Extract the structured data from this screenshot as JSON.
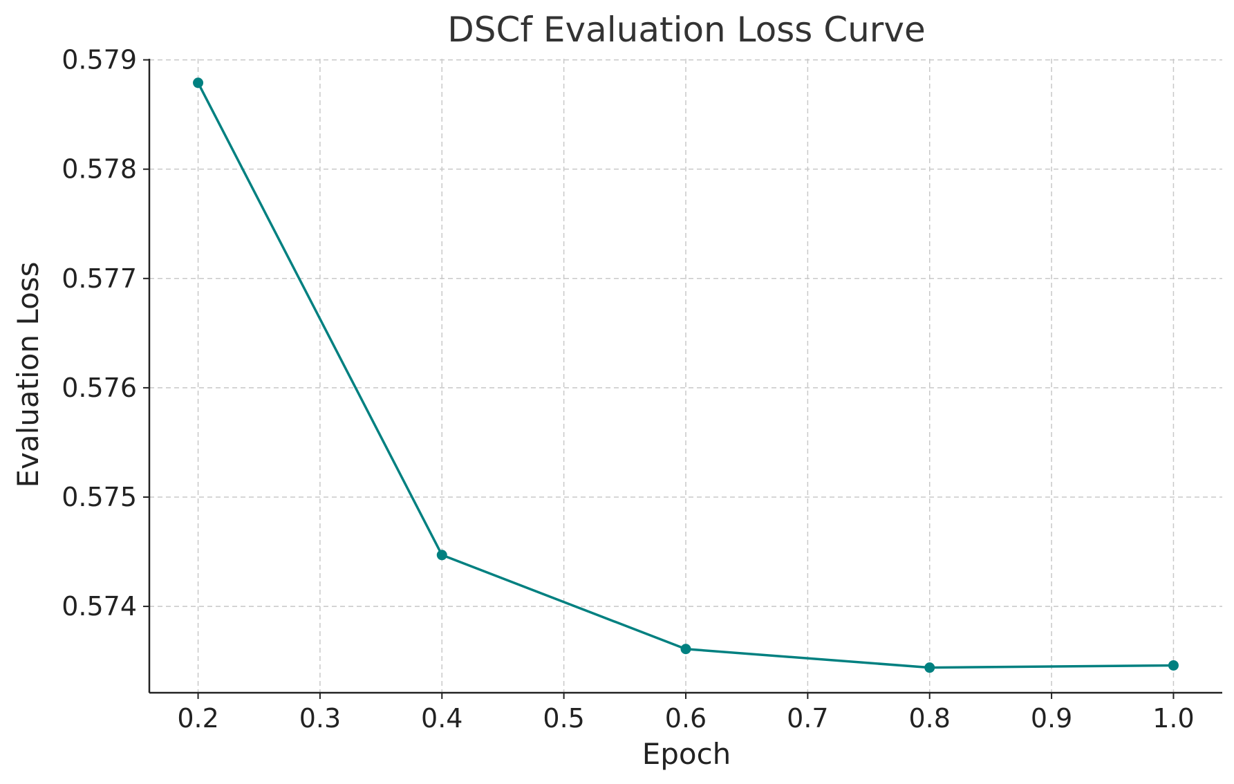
{
  "chart_data": {
    "type": "line",
    "title": "DSCf Evaluation Loss Curve",
    "xlabel": "Epoch",
    "ylabel": "Evaluation Loss",
    "x": [
      0.2,
      0.4,
      0.6,
      0.8,
      1.0
    ],
    "series": [
      {
        "values": [
          0.57879,
          0.57447,
          0.57361,
          0.57344,
          0.57346
        ],
        "color": "#008080",
        "marker": "circle"
      }
    ],
    "xlim": [
      0.16,
      1.04
    ],
    "ylim": [
      0.57321,
      0.57901
    ],
    "xticks": [
      0.2,
      0.3,
      0.4,
      0.5,
      0.6,
      0.7,
      0.8,
      0.9,
      1.0
    ],
    "xtick_labels": [
      "0.2",
      "0.3",
      "0.4",
      "0.5",
      "0.6",
      "0.7",
      "0.8",
      "0.9",
      "1.0"
    ],
    "yticks": [
      0.574,
      0.575,
      0.576,
      0.577,
      0.578,
      0.579
    ],
    "ytick_labels": [
      "0.574",
      "0.575",
      "0.576",
      "0.577",
      "0.578",
      "0.579"
    ],
    "grid": true,
    "legend": "none"
  }
}
